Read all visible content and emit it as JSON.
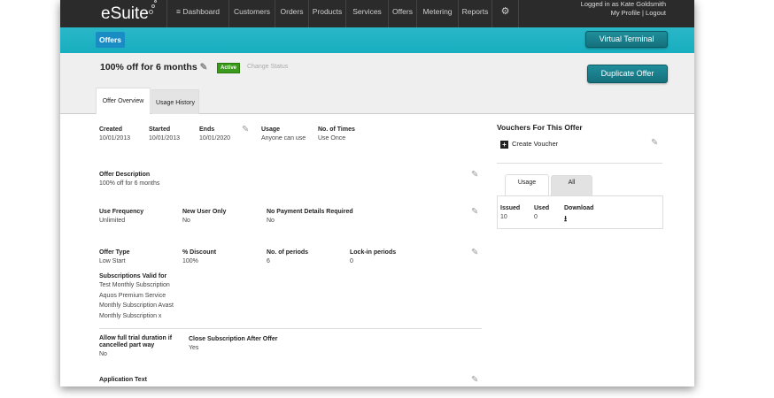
{
  "nav": {
    "logo": "eSuite",
    "items": [
      "Dashboard",
      "Customers",
      "Orders",
      "Products",
      "Services",
      "Offers",
      "Metering",
      "Reports"
    ],
    "logged_in": "Logged in as Kate Goldsmith",
    "profile_links": "My Profile | Logout"
  },
  "breadcrumb": "Offers",
  "virtual_terminal": "Virtual Terminal",
  "offer": {
    "title": "100% off for 6 months",
    "status": "Active",
    "change_status": "Change Status",
    "duplicate": "Duplicate Offer"
  },
  "tabs": [
    "Offer Overview",
    "Usage History"
  ],
  "fields": {
    "created": {
      "label": "Created",
      "value": "10/01/2013"
    },
    "started": {
      "label": "Started",
      "value": "10/01/2013"
    },
    "ends": {
      "label": "Ends",
      "value": "10/01/2020"
    },
    "usage": {
      "label": "Usage",
      "value": "Anyone can use"
    },
    "times": {
      "label": "No. of Times",
      "value": "Use Once"
    },
    "description": {
      "label": "Offer Description",
      "value": "100% off for 6 months"
    },
    "frequency": {
      "label": "Use Frequency",
      "value": "Unlimited"
    },
    "new_user": {
      "label": "New User Only",
      "value": "No"
    },
    "no_payment": {
      "label": "No Payment Details Required",
      "value": "No"
    },
    "type": {
      "label": "Offer Type",
      "value": "Low Start"
    },
    "discount": {
      "label": "% Discount",
      "value": "100%"
    },
    "periods": {
      "label": "No. of periods",
      "value": "6"
    },
    "lockin": {
      "label": "Lock-in periods",
      "value": "0"
    },
    "subs": {
      "label": "Subscriptions Valid for",
      "values": [
        "Test Monthly Subscription",
        "Aquos Premium Service",
        "Monthly Subscription Avast",
        "Monthly Subscription x"
      ]
    },
    "trial": {
      "label": "Allow full trial duration if cancelled part way",
      "value": "No"
    },
    "close": {
      "label": "Close Subscription After Offer",
      "value": "Yes"
    },
    "app_text": {
      "label": "Application Text"
    }
  },
  "vouchers": {
    "title": "Vouchers For This Offer",
    "create": "Create Voucher",
    "tabs": [
      "Usage",
      "All"
    ],
    "cols": [
      "Issued",
      "Used",
      "Download"
    ],
    "values": [
      "10",
      "0"
    ]
  }
}
